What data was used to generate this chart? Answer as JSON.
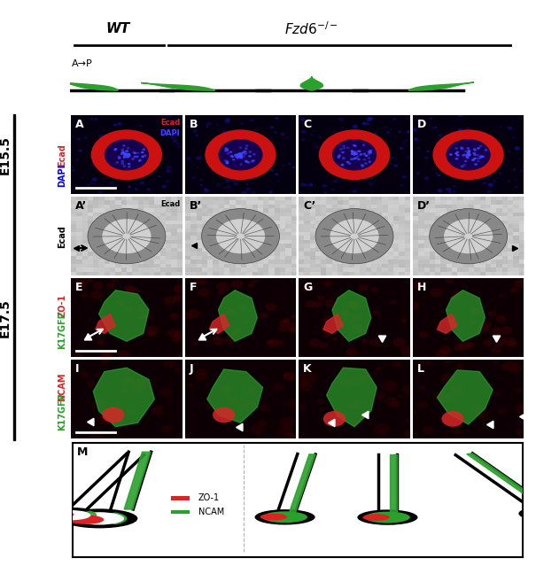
{
  "fig_width": 6.05,
  "fig_height": 6.39,
  "title_wt": "WT",
  "title_fzd": "Fzd6⁻/⁻",
  "label_ap": "A→P",
  "label_e155": "E15.5",
  "label_e175": "E17.5",
  "label_ecad_red": "Ecad",
  "label_dapi_blue": "DAPI",
  "label_ecad": "Ecad",
  "label_zo1": "ZO-1",
  "label_k17gfp_zo1": "K17GFP",
  "label_ncam": "NCAM",
  "label_k17gfp_ncam": "K17GFP",
  "label_m": "M",
  "legend_zo1": "ZO-1",
  "legend_ncam": "NCAM",
  "panel_labels_row1": [
    "A",
    "B",
    "C",
    "D"
  ],
  "panel_labels_row2": [
    "A’",
    "B’",
    "C’",
    "D’"
  ],
  "panel_labels_row3": [
    "E",
    "F",
    "G",
    "H"
  ],
  "panel_labels_row4": [
    "I",
    "J",
    "K",
    "L"
  ],
  "bg_dark": "#1a0000",
  "bg_gray": "#c8c8c8",
  "green_color": "#2ca02c",
  "red_color": "#d62728",
  "blue_color": "#1f77b4",
  "black": "#000000",
  "white": "#ffffff",
  "panel_bg_fluorescence": "#0a0000",
  "panel_bg_gray": "#d0d0d0"
}
